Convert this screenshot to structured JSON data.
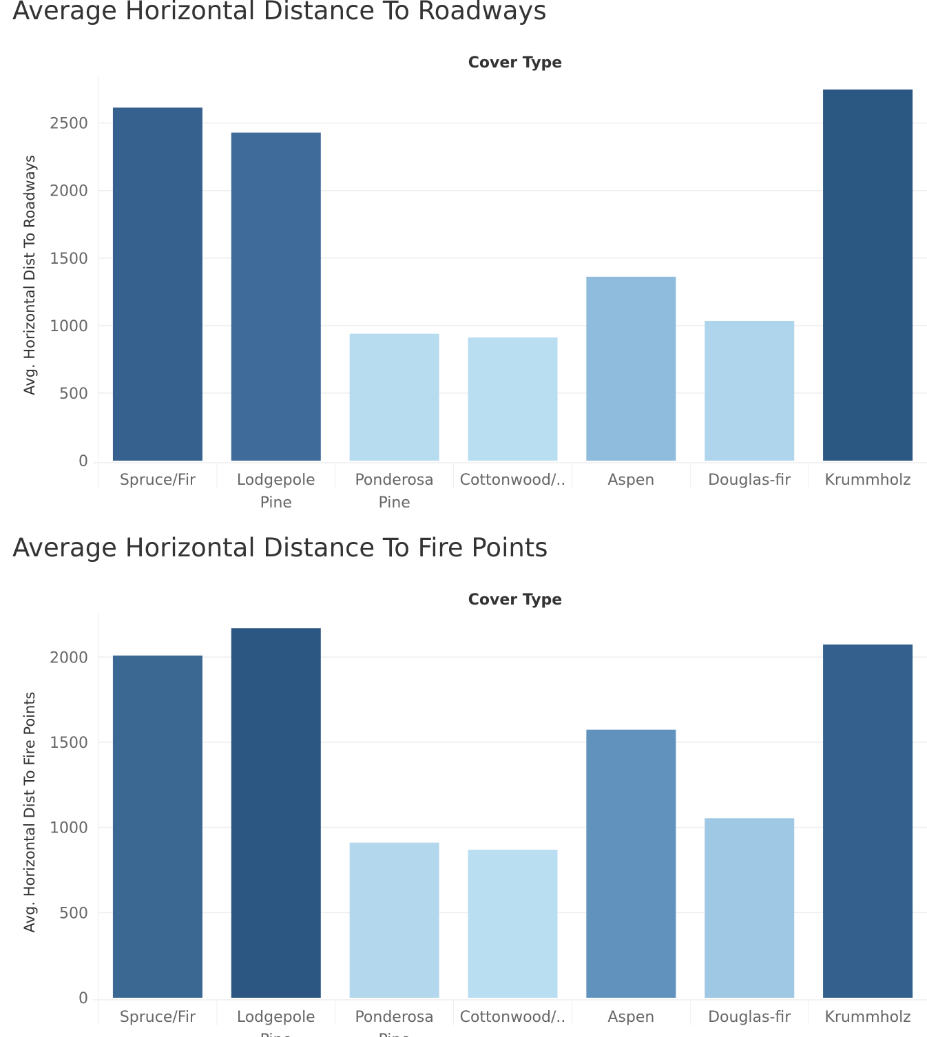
{
  "chart_data": [
    {
      "type": "bar",
      "title": "Average Horizontal Distance To Roadways",
      "header": "Cover Type",
      "ylabel": "Avg. Horizontal Dist To Roadways",
      "categories": [
        [
          "Spruce/Fir"
        ],
        [
          "Lodgepole",
          "Pine"
        ],
        [
          "Ponderosa",
          "Pine"
        ],
        [
          "Cottonwood/.."
        ],
        [
          "Aspen"
        ],
        [
          "Douglas-fir"
        ],
        [
          "Krummholz"
        ]
      ],
      "values": [
        2614,
        2429,
        940,
        912,
        1362,
        1035,
        2748
      ],
      "colors": [
        "#36618e",
        "#3e6b9a",
        "#b7dcef",
        "#badef1",
        "#8fbcdd",
        "#afd5ed",
        "#2b5783"
      ],
      "yticks": [
        0,
        500,
        1000,
        1500,
        2000,
        2500
      ],
      "ylim": [
        0,
        2850
      ],
      "grid": true
    },
    {
      "type": "bar",
      "title": "Average Horizontal Distance To Fire Points",
      "header": "Cover Type",
      "ylabel": "Avg. Horizontal Dist To Fire Points",
      "categories": [
        [
          "Spruce/Fir"
        ],
        [
          "Lodgepole",
          "Pine"
        ],
        [
          "Ponderosa",
          "Pine"
        ],
        [
          "Cottonwood/.."
        ],
        [
          "Aspen"
        ],
        [
          "Douglas-fir"
        ],
        [
          "Krummholz"
        ]
      ],
      "values": [
        2009,
        2170,
        911,
        869,
        1574,
        1054,
        2074
      ],
      "colors": [
        "#3b6793",
        "#2c5783",
        "#b3d8ed",
        "#b9ddf1",
        "#6192bd",
        "#9fc8e4",
        "#33608d"
      ],
      "yticks": [
        0,
        500,
        1000,
        1500,
        2000
      ],
      "ylim": [
        0,
        2260
      ],
      "grid": true
    }
  ]
}
